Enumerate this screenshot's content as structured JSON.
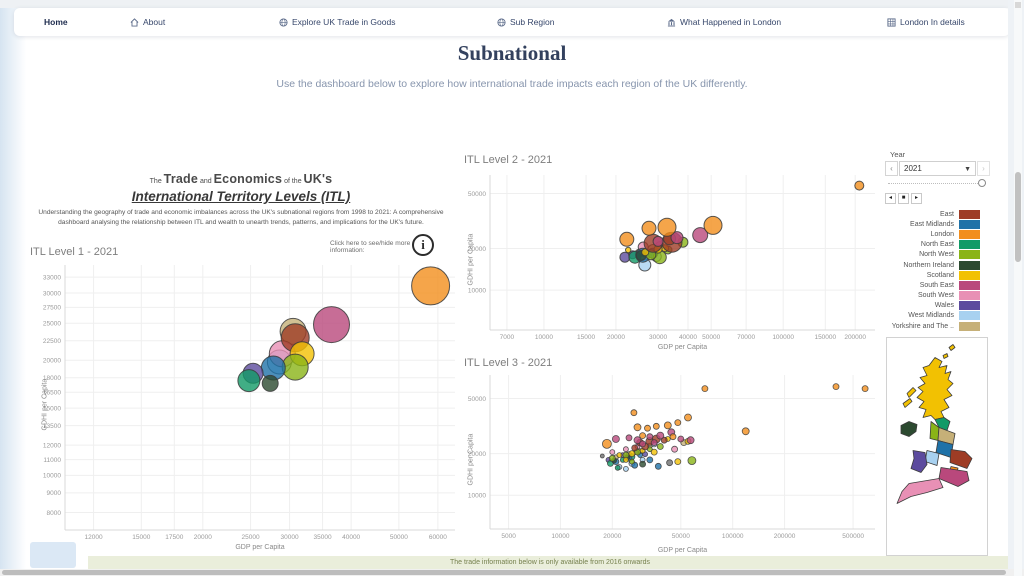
{
  "nav": {
    "items": [
      {
        "label": "Home",
        "icon": null
      },
      {
        "label": "About",
        "icon": "house-icon"
      },
      {
        "label": "Explore UK Trade in Goods",
        "icon": "globe-icon"
      },
      {
        "label": "Sub Region",
        "icon": "globe-icon"
      },
      {
        "label": "What Happened in London",
        "icon": "bank-icon"
      },
      {
        "label": "London In details",
        "icon": "building-grid-icon"
      }
    ]
  },
  "header": {
    "title": "Subnational",
    "subtitle": "Use the dashboard below to explore how international trade impacts each region of the UK differently."
  },
  "intro": {
    "t1": "The",
    "t2": "Trade",
    "t3": "and",
    "t4": "Economics",
    "t5": "of the",
    "t6": "UK's",
    "title_line2": "International Territory Levels (ITL)",
    "description": "Understanding the geography of trade and economic imbalances across the UK's subnational regions from 1998 to 2021: A comprehensive dashboard analysing the relationship between ITL and wealth to unearth trends, patterns, and implications for the UK's future.",
    "info_hint": "Click here to see/hide more information:",
    "info_icon_glyph": "i"
  },
  "year_control": {
    "label": "Year",
    "value": "2021",
    "prev_glyph": "‹",
    "next_glyph": "›",
    "playback": [
      "◂",
      "■",
      "▸"
    ]
  },
  "region_colors": {
    "East": "#9e3c25",
    "East Midlands": "#1f72a8",
    "London": "#f28e1d",
    "North East": "#119a67",
    "North West": "#8ab417",
    "Northern Ireland": "#2c4a30",
    "Scotland": "#f2c102",
    "South East": "#b9487c",
    "South West": "#e890b5",
    "Wales": "#5c4b9e",
    "West Midlands": "#a8d1f0",
    "Yorkshire": "#c6b078",
    "Other": "#6e6e6e"
  },
  "legend": {
    "entries": [
      {
        "label": "East",
        "region": "East"
      },
      {
        "label": "East Midlands",
        "region": "East Midlands"
      },
      {
        "label": "London",
        "region": "London"
      },
      {
        "label": "North East",
        "region": "North East"
      },
      {
        "label": "North West",
        "region": "North West"
      },
      {
        "label": "Northern Ireland",
        "region": "Northern Ireland"
      },
      {
        "label": "Scotland",
        "region": "Scotland"
      },
      {
        "label": "South East",
        "region": "South East"
      },
      {
        "label": "South West",
        "region": "South West"
      },
      {
        "label": "Wales",
        "region": "Wales"
      },
      {
        "label": "West Midlands",
        "region": "West Midlands"
      },
      {
        "label": "Yorkshire and The ..",
        "region": "Yorkshire"
      }
    ]
  },
  "chart_data": [
    {
      "type": "scatter",
      "title": "ITL Level 1 - 2021",
      "xlabel": "GDP per Capita",
      "ylabel": "GDHI per Capita",
      "x_scale": "log",
      "y_scale": "log",
      "xlim": [
        10500,
        65000
      ],
      "ylim": [
        7200,
        35500
      ],
      "x_ticks": [
        12000,
        15000,
        17500,
        20000,
        25000,
        30000,
        35000,
        40000,
        50000,
        60000
      ],
      "y_ticks": [
        33000,
        30000,
        27500,
        25000,
        22500,
        20000,
        18000,
        16500,
        15000,
        13500,
        12000,
        11000,
        10000,
        9000,
        8000
      ],
      "points_format": [
        "region",
        "gdp_x",
        "gdhi_y",
        "radius_px"
      ],
      "points": [
        [
          "Yorkshire",
          30500,
          23800,
          13
        ],
        [
          "West Midlands",
          28600,
          19800,
          12
        ],
        [
          "South West",
          29000,
          20800,
          13
        ],
        [
          "East",
          30800,
          22900,
          14
        ],
        [
          "Scotland",
          31800,
          20800,
          12
        ],
        [
          "North West",
          30800,
          19200,
          13
        ],
        [
          "East Midlands",
          27800,
          19100,
          12
        ],
        [
          "Wales",
          25300,
          18500,
          10
        ],
        [
          "North East",
          24800,
          17700,
          11
        ],
        [
          "Northern Ireland",
          27400,
          17400,
          8
        ],
        [
          "South East",
          36500,
          24800,
          18
        ],
        [
          "London",
          58000,
          31300,
          19
        ]
      ]
    },
    {
      "type": "scatter",
      "title": "ITL Level 2 - 2021",
      "xlabel": "GDP per Capita",
      "ylabel": "GDHI per Capita",
      "x_scale": "log",
      "y_scale": "log",
      "xlim": [
        5950,
        242000
      ],
      "ylim": [
        5150,
        68000
      ],
      "x_ticks": [
        7000,
        10000,
        15000,
        20000,
        30000,
        40000,
        50000,
        70000,
        100000,
        150000,
        200000
      ],
      "y_ticks": [
        10000,
        20000,
        50000
      ],
      "points_format": [
        "region",
        "gdp_x",
        "gdhi_y",
        "radius_px"
      ],
      "points": [
        [
          "Yorkshire",
          28600,
          19500,
          5.5
        ],
        [
          "Yorkshire",
          25000,
          18500,
          4
        ],
        [
          "West Midlands",
          26400,
          15200,
          6
        ],
        [
          "West Midlands",
          29500,
          17500,
          5
        ],
        [
          "South West",
          26000,
          20500,
          5
        ],
        [
          "South West",
          30500,
          21000,
          4
        ],
        [
          "Wales",
          21800,
          17300,
          5
        ],
        [
          "Wales",
          23500,
          18000,
          4
        ],
        [
          "North East",
          24000,
          17300,
          6
        ],
        [
          "North East",
          26500,
          18500,
          4
        ],
        [
          "East Midlands",
          25900,
          17900,
          7
        ],
        [
          "East Midlands",
          28500,
          18500,
          5
        ],
        [
          "Northern Ireland",
          25500,
          17800,
          5
        ],
        [
          "North West",
          38100,
          22200,
          5
        ],
        [
          "North West",
          30500,
          17300,
          6.5
        ],
        [
          "North West",
          28000,
          18000,
          5
        ],
        [
          "North West",
          33000,
          19500,
          4
        ],
        [
          "Scotland",
          32100,
          20100,
          3.5
        ],
        [
          "Scotland",
          22500,
          19500,
          2.7
        ],
        [
          "Scotland",
          30000,
          19800,
          4
        ],
        [
          "Scotland",
          26500,
          18800,
          3.5
        ],
        [
          "East",
          34300,
          22200,
          10
        ],
        [
          "East",
          28600,
          21800,
          9
        ],
        [
          "East",
          33500,
          23500,
          6
        ],
        [
          "South East",
          36000,
          24000,
          6
        ],
        [
          "South East",
          30000,
          22500,
          5
        ],
        [
          "South East",
          45000,
          25000,
          7.5
        ],
        [
          "London",
          22200,
          23300,
          7
        ],
        [
          "London",
          27500,
          28000,
          7
        ],
        [
          "London",
          32700,
          28500,
          9
        ],
        [
          "London",
          50900,
          29400,
          9
        ],
        [
          "London",
          208000,
          57000,
          4.5
        ]
      ]
    },
    {
      "type": "scatter",
      "title": "ITL Level 3 - 2021",
      "xlabel": "GDP per Capita",
      "ylabel": "GDHI per Capita",
      "x_scale": "log",
      "y_scale": "log",
      "xlim": [
        3900,
        670000
      ],
      "ylim": [
        5700,
        74000
      ],
      "x_ticks": [
        5000,
        10000,
        20000,
        50000,
        100000,
        200000,
        500000
      ],
      "y_ticks": [
        10000,
        20000,
        50000
      ],
      "points_format": [
        "region",
        "gdp_x",
        "gdhi_y",
        "radius_px"
      ],
      "points": [
        [
          "Other",
          17500,
          19200,
          2
        ],
        [
          "Other",
          43000,
          17200,
          3
        ],
        [
          "Yorkshire",
          21000,
          18800,
          2.5
        ],
        [
          "Yorkshire",
          25000,
          19800,
          2.5
        ],
        [
          "Yorkshire",
          29000,
          20800,
          2.5
        ],
        [
          "Yorkshire",
          33000,
          22800,
          2.5
        ],
        [
          "Yorkshire",
          52000,
          24000,
          3
        ],
        [
          "West Midlands",
          22000,
          16000,
          2.5
        ],
        [
          "West Midlands",
          26000,
          17000,
          3
        ],
        [
          "West Midlands",
          30000,
          18000,
          2.5
        ],
        [
          "West Midlands",
          35000,
          23500,
          3
        ],
        [
          "West Midlands",
          24000,
          15500,
          2.5
        ],
        [
          "Wales",
          19000,
          18000,
          2.5
        ],
        [
          "Wales",
          23000,
          19500,
          2.5
        ],
        [
          "Wales",
          27500,
          20500,
          2.5
        ],
        [
          "Wales",
          31000,
          19800,
          2.5
        ],
        [
          "North East",
          19500,
          17000,
          3
        ],
        [
          "North East",
          23000,
          18000,
          2.5
        ],
        [
          "North East",
          26000,
          19000,
          3
        ],
        [
          "North East",
          21500,
          15800,
          2.5
        ],
        [
          "East Midlands",
          21000,
          17500,
          3
        ],
        [
          "East Midlands",
          25000,
          18500,
          3
        ],
        [
          "East Midlands",
          29000,
          19500,
          2.5
        ],
        [
          "East Midlands",
          33000,
          18000,
          3
        ],
        [
          "East Midlands",
          27000,
          16500,
          3
        ],
        [
          "East Midlands",
          37000,
          16200,
          3
        ],
        [
          "Northern Ireland",
          20500,
          17800,
          2.5
        ],
        [
          "Northern Ireland",
          24500,
          18800,
          2.5
        ],
        [
          "Northern Ireland",
          30000,
          16800,
          3
        ],
        [
          "North West",
          20000,
          18500,
          3
        ],
        [
          "North West",
          24000,
          19500,
          3
        ],
        [
          "North West",
          28000,
          20500,
          3
        ],
        [
          "North West",
          33000,
          21500,
          2.5
        ],
        [
          "North West",
          38000,
          22500,
          3
        ],
        [
          "North West",
          58000,
          17800,
          4
        ],
        [
          "North West",
          26000,
          17500,
          2.5
        ],
        [
          "Scotland",
          22000,
          19500,
          2.5
        ],
        [
          "Scotland",
          26000,
          20000,
          3
        ],
        [
          "Scotland",
          30000,
          21000,
          2.5
        ],
        [
          "Scotland",
          35000,
          20500,
          3
        ],
        [
          "Scotland",
          42000,
          25500,
          2.5
        ],
        [
          "Scotland",
          55000,
          24500,
          3
        ],
        [
          "Scotland",
          24000,
          18000,
          2.5
        ],
        [
          "Scotland",
          48000,
          17500,
          3
        ],
        [
          "South West",
          20000,
          20500,
          2.5
        ],
        [
          "South West",
          24000,
          21500,
          2.5
        ],
        [
          "South West",
          28000,
          22500,
          2.5
        ],
        [
          "South West",
          46000,
          21500,
          3
        ],
        [
          "East",
          29000,
          24000,
          3.5
        ],
        [
          "East",
          33000,
          24500,
          4
        ],
        [
          "East",
          36000,
          25500,
          4
        ],
        [
          "East",
          40000,
          25000,
          3
        ],
        [
          "East",
          31000,
          22500,
          3.5
        ],
        [
          "East",
          27000,
          22000,
          3
        ],
        [
          "South East",
          21000,
          25500,
          3.5
        ],
        [
          "South East",
          25000,
          26000,
          3
        ],
        [
          "South East",
          28000,
          25000,
          3.5
        ],
        [
          "South East",
          33000,
          26500,
          3
        ],
        [
          "South East",
          38000,
          27000,
          3.5
        ],
        [
          "South East",
          44000,
          28500,
          3.5
        ],
        [
          "South East",
          50000,
          25500,
          3
        ],
        [
          "South East",
          57000,
          25000,
          3.5
        ],
        [
          "South East",
          35000,
          24000,
          3
        ],
        [
          "South East",
          30000,
          23500,
          3
        ],
        [
          "London",
          18600,
          23500,
          4.5
        ],
        [
          "London",
          26700,
          39500,
          3
        ],
        [
          "London",
          28000,
          31000,
          3.5
        ],
        [
          "London",
          32000,
          30500,
          3
        ],
        [
          "London",
          36000,
          31500,
          3
        ],
        [
          "London",
          42000,
          32000,
          3.5
        ],
        [
          "London",
          48000,
          33500,
          3
        ],
        [
          "London",
          55000,
          36500,
          3.5
        ],
        [
          "London",
          30000,
          27000,
          3
        ],
        [
          "London",
          45000,
          26500,
          3
        ],
        [
          "London",
          119000,
          29000,
          3.5
        ],
        [
          "London",
          69000,
          59000,
          3
        ],
        [
          "London",
          398000,
          61000,
          3
        ],
        [
          "London",
          587000,
          59000,
          3
        ]
      ]
    }
  ],
  "footer": {
    "notice": "The trade information below is only available from 2016 onwards"
  }
}
